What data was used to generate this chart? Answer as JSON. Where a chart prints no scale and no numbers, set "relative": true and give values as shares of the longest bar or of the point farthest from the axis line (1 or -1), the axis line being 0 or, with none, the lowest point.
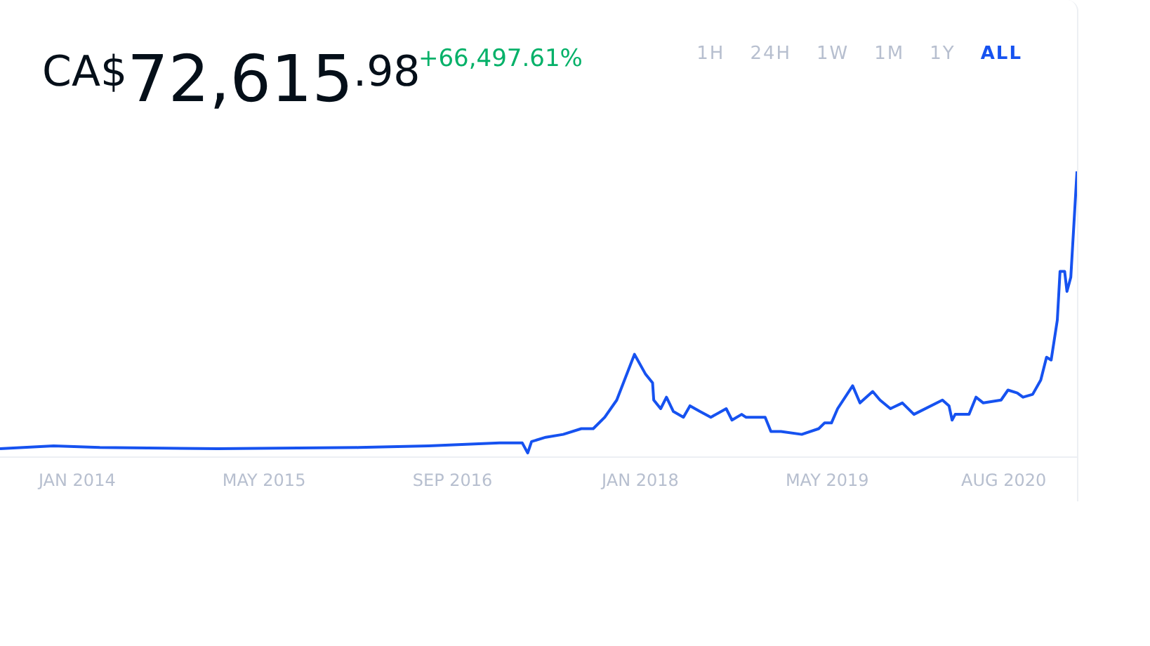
{
  "chart_data": {
    "type": "line",
    "title": "CA$72,615.98",
    "subtitle": "+66,497.61%",
    "annotations": [
      "1H",
      "24H",
      "1W",
      "1M",
      "1Y",
      "ALL"
    ],
    "relative": true,
    "color": "#1652f0",
    "grid": false,
    "legend": false,
    "marker": "none",
    "line_style": "solid",
    "x": [
      "2013-06-15",
      "2013-11-01",
      "2014-03-01",
      "2015-01-01",
      "2016-01-01",
      "2016-07-01",
      "2017-01-01",
      "2017-03-01",
      "2017-03-15",
      "2017-03-25",
      "2017-05-01",
      "2017-06-15",
      "2017-08-01",
      "2017-09-01",
      "2017-10-01",
      "2017-11-01",
      "2017-12-17",
      "2018-01-15",
      "2018-02-02",
      "2018-02-05",
      "2018-02-23",
      "2018-03-10",
      "2018-03-28",
      "2018-04-23",
      "2018-05-10",
      "2018-06-05",
      "2018-07-03",
      "2018-08-12",
      "2018-08-27",
      "2018-09-21",
      "2018-10-02",
      "2018-11-21",
      "2018-12-06",
      "2019-01-01",
      "2019-02-24",
      "2019-04-09",
      "2019-04-24",
      "2019-05-12",
      "2019-05-28",
      "2019-07-06",
      "2019-07-25",
      "2019-08-27",
      "2019-09-15",
      "2019-10-12",
      "2019-11-12",
      "2019-12-12",
      "2020-02-24",
      "2020-03-12",
      "2020-03-20",
      "2020-03-28",
      "2020-05-03",
      "2020-05-21",
      "2020-06-09",
      "2020-07-25",
      "2020-08-12",
      "2020-09-05",
      "2020-09-20",
      "2020-10-15",
      "2020-11-05",
      "2020-11-20",
      "2020-12-02",
      "2020-12-18",
      "2020-12-25",
      "2021-01-06",
      "2021-01-12",
      "2021-01-22",
      "2021-02-07"
    ],
    "values": [
      0.03,
      0.04,
      0.034,
      0.03,
      0.034,
      0.04,
      0.05,
      0.05,
      0.015,
      0.055,
      0.07,
      0.08,
      0.1,
      0.1,
      0.14,
      0.2,
      0.36,
      0.29,
      0.26,
      0.2,
      0.17,
      0.21,
      0.16,
      0.14,
      0.18,
      0.16,
      0.14,
      0.17,
      0.13,
      0.15,
      0.14,
      0.14,
      0.09,
      0.09,
      0.08,
      0.1,
      0.12,
      0.12,
      0.17,
      0.25,
      0.19,
      0.23,
      0.2,
      0.17,
      0.19,
      0.15,
      0.2,
      0.18,
      0.13,
      0.15,
      0.15,
      0.21,
      0.19,
      0.2,
      0.235,
      0.225,
      0.21,
      0.22,
      0.27,
      0.35,
      0.34,
      0.48,
      0.65,
      0.65,
      0.58,
      0.63,
      1
    ],
    "xlim": [
      "2013-06-15",
      "2021-02-07"
    ],
    "xticks": [
      {
        "value": "2014-01",
        "label": "JAN 2014"
      },
      {
        "value": "2015-05",
        "label": "MAY 2015"
      },
      {
        "value": "2016-09",
        "label": "SEP 2016"
      },
      {
        "value": "2018-01",
        "label": "JAN 2018"
      },
      {
        "value": "2019-05",
        "label": "MAY 2019"
      },
      {
        "value": "2020-08",
        "label": "AUG 2020"
      }
    ]
  }
}
